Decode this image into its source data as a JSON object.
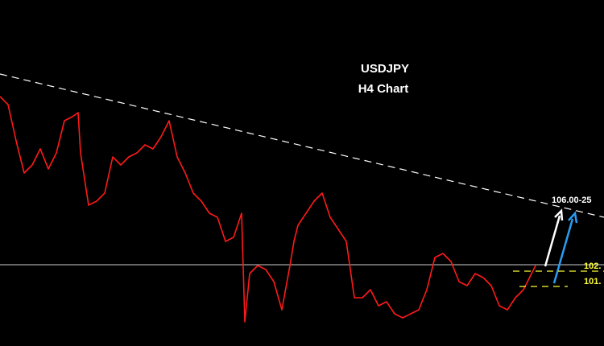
{
  "chart_data": {
    "type": "line",
    "title": "USDJPY",
    "subtitle": "H4 Chart",
    "series": [
      {
        "name": "USDJPY",
        "color": "#ff1a1a",
        "x": [
          0,
          10,
          20,
          30,
          40,
          50,
          60,
          70,
          80,
          90,
          97,
          100,
          110,
          120,
          130,
          140,
          150,
          160,
          170,
          180,
          190,
          200,
          210,
          220,
          230,
          240,
          250,
          260,
          270,
          280,
          290,
          300,
          304,
          310,
          320,
          330,
          340,
          350,
          360,
          365,
          370,
          380,
          390,
          400,
          410,
          420,
          430,
          440,
          450,
          460,
          470,
          480,
          490,
          500,
          510,
          520,
          530,
          540,
          550,
          560,
          570,
          580,
          590,
          600,
          610,
          620,
          630,
          640,
          650,
          660,
          665
        ],
        "values": [
          113.35,
          112.85,
          110.6,
          108.6,
          109.1,
          110.1,
          108.85,
          109.85,
          111.85,
          112.1,
          112.35,
          109.85,
          106.6,
          106.85,
          107.35,
          109.6,
          109.1,
          109.6,
          109.85,
          110.35,
          110.1,
          110.85,
          111.85,
          109.6,
          108.6,
          107.35,
          106.85,
          106.1,
          105.85,
          104.35,
          104.6,
          106.1,
          99.35,
          102.35,
          102.85,
          102.6,
          101.85,
          100.1,
          102.85,
          104.35,
          105.35,
          106.1,
          106.85,
          107.35,
          105.85,
          105.1,
          104.35,
          100.85,
          100.85,
          101.35,
          100.35,
          100.6,
          99.85,
          99.6,
          99.85,
          100.1,
          101.35,
          103.35,
          103.6,
          103.1,
          101.85,
          101.6,
          102.35,
          102.1,
          101.6,
          100.35,
          100.1,
          100.85,
          101.35,
          102.35,
          102.85
        ]
      }
    ],
    "xlim": [
      0,
      750
    ],
    "ylim": [
      97.85,
      119.35
    ],
    "trendline": {
      "color": "#ffffff",
      "x": [
        0,
        750
      ],
      "values": [
        114.75,
        105.85
      ]
    },
    "hline": {
      "color": "#cccccc",
      "value": 102.9
    },
    "levels": [
      {
        "label": "102.",
        "value": 102.5,
        "x": [
          637,
          750
        ],
        "color": "#ffff33"
      },
      {
        "label": "101.",
        "value": 101.55,
        "x": [
          645,
          705
        ],
        "color": "#ffff33"
      }
    ],
    "target_label": "106.00-25"
  }
}
